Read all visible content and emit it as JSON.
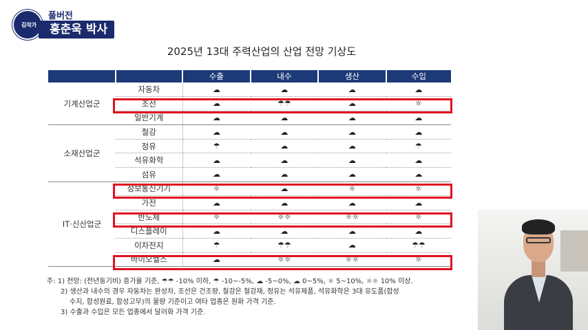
{
  "logo": {
    "badge": "김작가",
    "top_text": "풀버전",
    "name": "홍춘욱 박사"
  },
  "title": "2025년 13대 주력산업의 산업 전망 기상도",
  "table": {
    "headers": [
      "",
      "",
      "수출",
      "내수",
      "생산",
      "수입"
    ],
    "groups": [
      {
        "name": "기계산업군",
        "rows": [
          {
            "name": "자동차",
            "cells": [
              "☁",
              "☁",
              "☁",
              "☁"
            ]
          },
          {
            "name": "조선",
            "cells": [
              "☁",
              "☂☂",
              "☁",
              "☼"
            ]
          },
          {
            "name": "일반기계",
            "cells": [
              "☁",
              "☁",
              "☁",
              "☁"
            ]
          }
        ]
      },
      {
        "name": "소재산업군",
        "rows": [
          {
            "name": "철강",
            "cells": [
              "☁",
              "☁",
              "☁",
              "☁"
            ]
          },
          {
            "name": "정유",
            "cells": [
              "☂",
              "☁",
              "☁",
              "☂"
            ]
          },
          {
            "name": "석유화학",
            "cells": [
              "☁",
              "☁",
              "☁",
              "☁"
            ]
          },
          {
            "name": "섬유",
            "cells": [
              "☁",
              "☁",
              "☁",
              "☁"
            ]
          }
        ]
      },
      {
        "name": "IT·신산업군",
        "rows": [
          {
            "name": "정보통신기기",
            "cells": [
              "☼",
              "☁",
              "☼",
              "☼"
            ]
          },
          {
            "name": "가전",
            "cells": [
              "☁",
              "☁",
              "☁",
              "☁"
            ]
          },
          {
            "name": "반도체",
            "cells": [
              "☼",
              "☼☼",
              "☼☼",
              "☼"
            ]
          },
          {
            "name": "디스플레이",
            "cells": [
              "☁",
              "☁",
              "☁",
              "☁"
            ]
          },
          {
            "name": "이차전지",
            "cells": [
              "☂",
              "☂☂",
              "☁",
              "☂☂"
            ]
          },
          {
            "name": "바이오헬스",
            "cells": [
              "☁",
              "☼☼",
              "☼☼",
              "☼"
            ]
          }
        ]
      }
    ]
  },
  "notes": {
    "n1": "주: 1) 전망: (전년동기비) 증가율 기준, ☂☂ -10% 이하, ☂ -10~-5%, ☁ -5~0%, ☁ 0~5%, ☼ 5~10%, ☼☼ 10% 이상.",
    "n2a": "2) 생산과 내수의 경우 자동차는 완성차, 조선은 건조량, 철강은 철강재, 정유는 석유제품, 석유화학은 3대 유도품(합성",
    "n2b": "수지, 합성원료, 합성고무)의 물량 기준이고 여타 업종은 원화 가격 기준.",
    "n3": "3) 수출과 수입은 모든 업종에서 달러화 가격 기준."
  },
  "colors": {
    "header_bg": "#1d3a78",
    "highlight": "#e01020",
    "logo_navy": "#1a2a6c"
  }
}
